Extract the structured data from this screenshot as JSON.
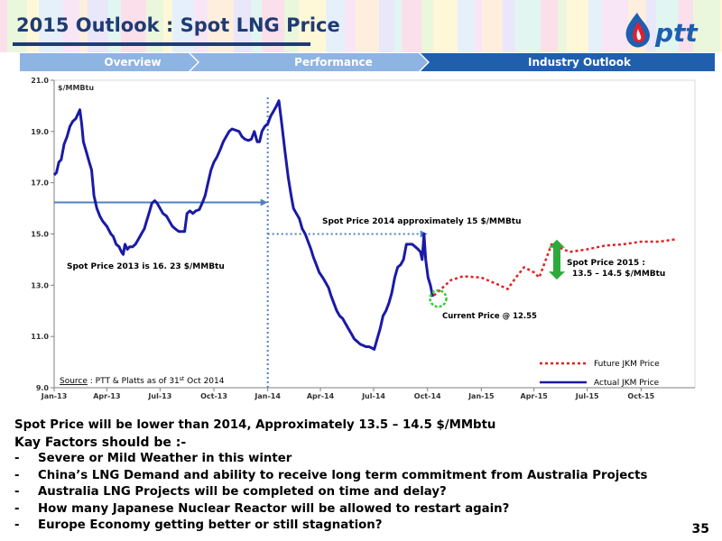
{
  "slide": {
    "title": "2015 Outlook : Spot LNG Price",
    "page_number": "35",
    "logo_text": "ptt",
    "nav": [
      {
        "label": "Overview",
        "state": "inactive"
      },
      {
        "label": "Performance",
        "state": "inactive"
      },
      {
        "label": "Industry Outlook",
        "state": "active"
      }
    ],
    "body": {
      "lead": "Spot Price will be lower than 2014, Approximately 13.5 – 14.5 $/MMbtu",
      "factors_heading": "Kay Factors should be :-",
      "bullet_marker": "-",
      "factors": [
        "Severe or Mild Weather in this winter",
        "China’s LNG Demand and ability to receive long term commitment from Australia Projects",
        "Australia LNG Projects will be completed on time and delay?",
        "How many Japanese Nuclear Reactor will be allowed to restart again?",
        "Europe Economy getting better or still stagnation?"
      ]
    },
    "colors": {
      "title": "#1f3b73",
      "nav_inactive": "#8eb4e3",
      "nav_active": "#1f5fae",
      "actual": "#1a1aa6",
      "future": "#e02020",
      "annotation_arrow": "#4f81bd",
      "range_arrow": "#2eaa3c",
      "current_circle": "#33cc33"
    }
  },
  "chart_data": {
    "type": "line",
    "ylabel": "$/MMBtu",
    "ylim": [
      9.0,
      21.0
    ],
    "yticks": [
      "9.0",
      "11.0",
      "13.0",
      "15.0",
      "17.0",
      "19.0",
      "21.0"
    ],
    "xticks": [
      "Jan-13",
      "Apr-13",
      "Jul-13",
      "Oct-13",
      "Jan-14",
      "Apr-14",
      "Jul-14",
      "Oct-14",
      "Jan-15",
      "Apr-15",
      "Jul-15",
      "Oct-15"
    ],
    "series": [
      {
        "name": "Actual JKM Price",
        "color": "#1a1aa6",
        "style": "solid",
        "points": [
          [
            "2013-01-01",
            17.3
          ],
          [
            "2013-01-05",
            17.4
          ],
          [
            "2013-01-09",
            17.8
          ],
          [
            "2013-01-13",
            17.9
          ],
          [
            "2013-01-18",
            18.5
          ],
          [
            "2013-01-23",
            18.8
          ],
          [
            "2013-01-28",
            19.2
          ],
          [
            "2013-02-02",
            19.4
          ],
          [
            "2013-02-07",
            19.5
          ],
          [
            "2013-02-11",
            19.7
          ],
          [
            "2013-02-14",
            19.85
          ],
          [
            "2013-02-17",
            19.3
          ],
          [
            "2013-02-20",
            18.6
          ],
          [
            "2013-02-25",
            18.2
          ],
          [
            "2013-03-02",
            17.8
          ],
          [
            "2013-03-06",
            17.5
          ],
          [
            "2013-03-10",
            16.5
          ],
          [
            "2013-03-15",
            16.0
          ],
          [
            "2013-03-20",
            15.7
          ],
          [
            "2013-03-25",
            15.5
          ],
          [
            "2013-04-01",
            15.3
          ],
          [
            "2013-04-08",
            15.0
          ],
          [
            "2013-04-12",
            14.9
          ],
          [
            "2013-04-17",
            14.6
          ],
          [
            "2013-04-22",
            14.5
          ],
          [
            "2013-04-26",
            14.3
          ],
          [
            "2013-04-29",
            14.2
          ],
          [
            "2013-05-02",
            14.6
          ],
          [
            "2013-05-06",
            14.4
          ],
          [
            "2013-05-10",
            14.5
          ],
          [
            "2013-05-15",
            14.5
          ],
          [
            "2013-05-20",
            14.6
          ],
          [
            "2013-05-25",
            14.8
          ],
          [
            "2013-05-30",
            15.0
          ],
          [
            "2013-06-04",
            15.2
          ],
          [
            "2013-06-08",
            15.5
          ],
          [
            "2013-06-12",
            15.8
          ],
          [
            "2013-06-17",
            16.2
          ],
          [
            "2013-06-22",
            16.3
          ],
          [
            "2013-06-26",
            16.2
          ],
          [
            "2013-07-01",
            16.0
          ],
          [
            "2013-07-06",
            15.8
          ],
          [
            "2013-07-12",
            15.7
          ],
          [
            "2013-07-17",
            15.5
          ],
          [
            "2013-07-22",
            15.3
          ],
          [
            "2013-07-27",
            15.2
          ],
          [
            "2013-08-02",
            15.1
          ],
          [
            "2013-08-07",
            15.1
          ],
          [
            "2013-08-12",
            15.1
          ],
          [
            "2013-08-16",
            15.8
          ],
          [
            "2013-08-21",
            15.9
          ],
          [
            "2013-08-26",
            15.8
          ],
          [
            "2013-08-31",
            15.9
          ],
          [
            "2013-09-06",
            15.95
          ],
          [
            "2013-09-11",
            16.2
          ],
          [
            "2013-09-16",
            16.5
          ],
          [
            "2013-09-21",
            17.0
          ],
          [
            "2013-09-26",
            17.5
          ],
          [
            "2013-10-01",
            17.8
          ],
          [
            "2013-10-06",
            18.0
          ],
          [
            "2013-10-12",
            18.3
          ],
          [
            "2013-10-17",
            18.6
          ],
          [
            "2013-10-22",
            18.8
          ],
          [
            "2013-10-27",
            19.0
          ],
          [
            "2013-11-01",
            19.1
          ],
          [
            "2013-11-07",
            19.05
          ],
          [
            "2013-11-13",
            19.0
          ],
          [
            "2013-11-18",
            18.8
          ],
          [
            "2013-11-23",
            18.7
          ],
          [
            "2013-11-29",
            18.65
          ],
          [
            "2013-12-04",
            18.7
          ],
          [
            "2013-12-09",
            19.0
          ],
          [
            "2013-12-14",
            18.6
          ],
          [
            "2013-12-18",
            18.6
          ],
          [
            "2013-12-22",
            19.0
          ],
          [
            "2013-12-27",
            19.2
          ],
          [
            "2014-01-01",
            19.3
          ],
          [
            "2014-01-06",
            19.6
          ],
          [
            "2014-01-11",
            19.8
          ],
          [
            "2014-01-16",
            20.0
          ],
          [
            "2014-01-20",
            20.2
          ],
          [
            "2014-01-25",
            19.3
          ],
          [
            "2014-01-30",
            18.3
          ],
          [
            "2014-02-05",
            17.2
          ],
          [
            "2014-02-10",
            16.5
          ],
          [
            "2014-02-14",
            16.0
          ],
          [
            "2014-02-19",
            15.8
          ],
          [
            "2014-02-24",
            15.6
          ],
          [
            "2014-03-01",
            15.2
          ],
          [
            "2014-03-06",
            15.0
          ],
          [
            "2014-03-11",
            14.7
          ],
          [
            "2014-03-16",
            14.4
          ],
          [
            "2014-03-20",
            14.1
          ],
          [
            "2014-03-25",
            13.8
          ],
          [
            "2014-03-30",
            13.5
          ],
          [
            "2014-04-05",
            13.3
          ],
          [
            "2014-04-10",
            13.1
          ],
          [
            "2014-04-15",
            12.9
          ],
          [
            "2014-04-19",
            12.6
          ],
          [
            "2014-04-24",
            12.3
          ],
          [
            "2014-04-29",
            12.0
          ],
          [
            "2014-05-04",
            11.8
          ],
          [
            "2014-05-09",
            11.7
          ],
          [
            "2014-05-14",
            11.5
          ],
          [
            "2014-05-19",
            11.3
          ],
          [
            "2014-05-24",
            11.1
          ],
          [
            "2014-05-29",
            10.9
          ],
          [
            "2014-06-03",
            10.8
          ],
          [
            "2014-06-08",
            10.7
          ],
          [
            "2014-06-13",
            10.65
          ],
          [
            "2014-06-18",
            10.6
          ],
          [
            "2014-06-23",
            10.6
          ],
          [
            "2014-06-28",
            10.55
          ],
          [
            "2014-07-02",
            10.5
          ],
          [
            "2014-07-07",
            10.9
          ],
          [
            "2014-07-12",
            11.3
          ],
          [
            "2014-07-17",
            11.8
          ],
          [
            "2014-07-22",
            12.0
          ],
          [
            "2014-07-27",
            12.3
          ],
          [
            "2014-08-01",
            12.7
          ],
          [
            "2014-08-06",
            13.3
          ],
          [
            "2014-08-11",
            13.7
          ],
          [
            "2014-08-16",
            13.8
          ],
          [
            "2014-08-21",
            14.0
          ],
          [
            "2014-08-26",
            14.6
          ],
          [
            "2014-08-31",
            14.6
          ],
          [
            "2014-09-05",
            14.6
          ],
          [
            "2014-09-10",
            14.5
          ],
          [
            "2014-09-15",
            14.4
          ],
          [
            "2014-09-19",
            14.3
          ],
          [
            "2014-09-22",
            14.0
          ],
          [
            "2014-09-25",
            15.0
          ],
          [
            "2014-09-28",
            14.0
          ],
          [
            "2014-10-02",
            13.3
          ],
          [
            "2014-10-06",
            13.0
          ],
          [
            "2014-10-10",
            12.55
          ]
        ]
      },
      {
        "name": "Future JKM Price",
        "color": "#e02020",
        "style": "dashed",
        "points": [
          [
            "2014-10-12",
            12.6
          ],
          [
            "2014-11-10",
            13.2
          ],
          [
            "2014-12-01",
            13.35
          ],
          [
            "2015-01-01",
            13.3
          ],
          [
            "2015-02-01",
            13.0
          ],
          [
            "2015-02-15",
            12.85
          ],
          [
            "2015-03-01",
            13.3
          ],
          [
            "2015-03-15",
            13.7
          ],
          [
            "2015-04-01",
            13.5
          ],
          [
            "2015-04-10",
            13.3
          ],
          [
            "2015-05-01",
            14.6
          ],
          [
            "2015-06-01",
            14.3
          ],
          [
            "2015-07-01",
            14.4
          ],
          [
            "2015-08-01",
            14.55
          ],
          [
            "2015-09-01",
            14.6
          ],
          [
            "2015-10-01",
            14.7
          ],
          [
            "2015-11-01",
            14.7
          ],
          [
            "2015-12-01",
            14.8
          ]
        ]
      }
    ],
    "annotations": {
      "source": "Source",
      "source_rest": " : PTT & Platts as of 31",
      "source_sup": "st",
      "source_end": " Oct 2014",
      "spot_2014": "Spot Price 2014  approximately 15 $/MMBtu",
      "spot_2013": "Spot Price 2013 is 16. 23 $/MMBtu",
      "spot_2015_line1": "Spot Price 2015 :",
      "spot_2015_line2": "13.5 – 14.5 $/MMBtu",
      "current": "Current Price @ 12.55",
      "avg_2013": 16.23,
      "avg_2014": 15.0,
      "current_price": 12.55,
      "current_date": "2014-10-10",
      "range_2015": [
        13.5,
        14.5
      ],
      "divider_date": "2014-01-01"
    },
    "legend": {
      "position": "bottom-right"
    },
    "grid": false
  }
}
